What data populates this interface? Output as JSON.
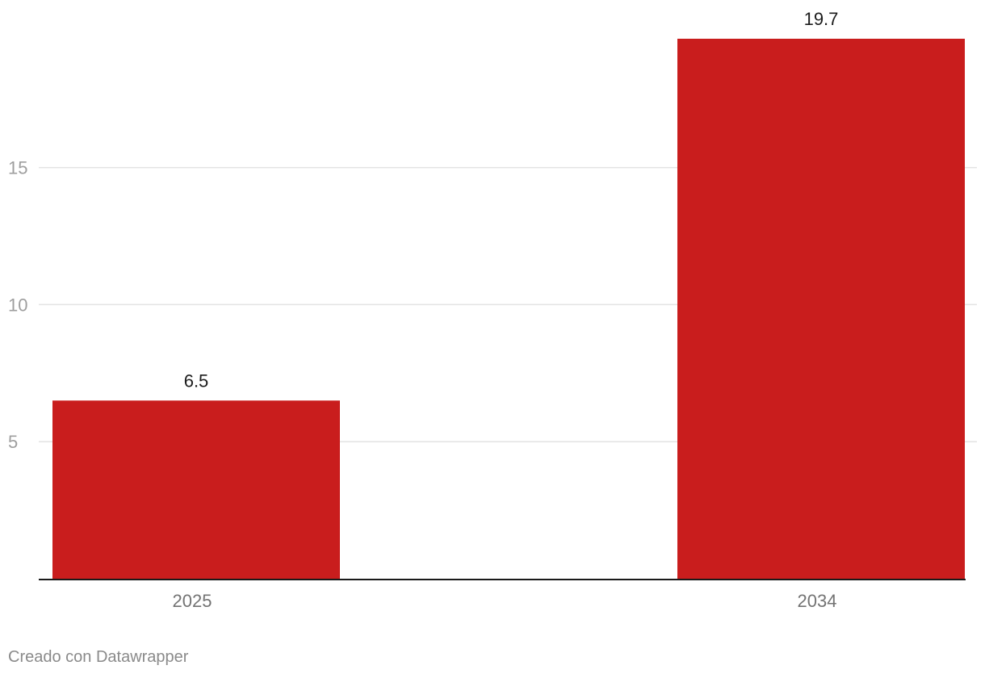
{
  "chart_data": {
    "type": "bar",
    "categories": [
      "2025",
      "2034"
    ],
    "values": [
      6.5,
      19.7
    ],
    "value_labels": [
      "6.5",
      "19.7"
    ],
    "title": "",
    "xlabel": "",
    "ylabel": "",
    "ylim": [
      0,
      19.7
    ],
    "yticks": [
      5,
      10,
      15
    ],
    "ytick_labels": [
      "5",
      "10",
      "15"
    ],
    "grid": true,
    "bar_color": "#c91d1d"
  },
  "footer": {
    "credit": "Creado con Datawrapper"
  }
}
